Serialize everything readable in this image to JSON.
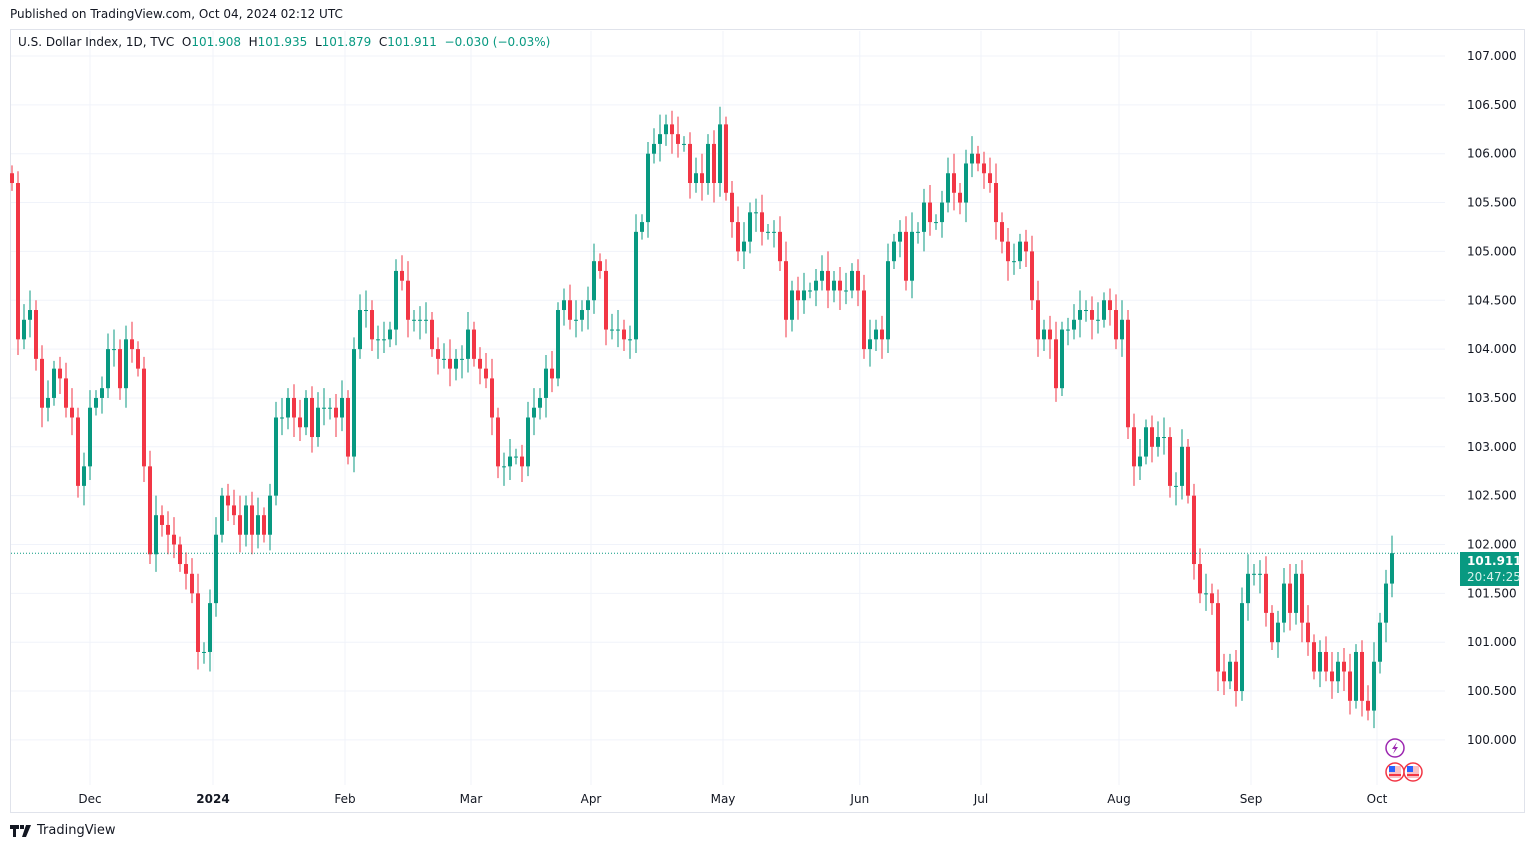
{
  "published": "Published on TradingView.com, Oct 04, 2024 02:12 UTC",
  "legend": {
    "symbol": "U.S. Dollar Index, 1D, TVC",
    "o_label": "O",
    "o": "101.908",
    "h_label": "H",
    "h": "101.935",
    "l_label": "L",
    "l": "101.879",
    "c_label": "C",
    "c": "101.911",
    "change": "−0.030 (−0.03%)"
  },
  "colors": {
    "up": "#089981",
    "down": "#f23645",
    "grid": "#f0f3fa",
    "text": "#131722"
  },
  "footer": {
    "brand": "TradingView"
  },
  "price_tag": {
    "price": "101.911",
    "countdown": "20:47:25"
  },
  "chart_data": {
    "type": "candlestick",
    "title": "U.S. Dollar Index, 1D, TVC",
    "ylim": [
      99.55,
      107.27
    ],
    "y_ticks": [
      "100.000",
      "100.500",
      "101.000",
      "101.500",
      "102.000",
      "102.500",
      "103.000",
      "103.500",
      "104.000",
      "104.500",
      "105.000",
      "105.500",
      "106.000",
      "106.500",
      "107.000"
    ],
    "x_ticks": [
      {
        "label": "Dec",
        "index": 13
      },
      {
        "label": "2024",
        "index": 33.5,
        "bold": true
      },
      {
        "label": "Feb",
        "index": 55.5
      },
      {
        "label": "Mar",
        "index": 76.5
      },
      {
        "label": "Apr",
        "index": 96.5
      },
      {
        "label": "May",
        "index": 118.5
      },
      {
        "label": "Jun",
        "index": 141.3
      },
      {
        "label": "Jul",
        "index": 161.5
      },
      {
        "label": "Aug",
        "index": 184.5
      },
      {
        "label": "Sep",
        "index": 206.5
      },
      {
        "label": "Oct",
        "index": 227.5
      }
    ],
    "first_open": 105.8,
    "close": [
      105.7,
      104.1,
      104.3,
      104.4,
      103.9,
      103.4,
      103.5,
      103.8,
      103.7,
      103.4,
      103.3,
      102.6,
      102.8,
      103.4,
      103.5,
      103.6,
      104.0,
      104.0,
      103.6,
      104.1,
      104.0,
      103.8,
      102.8,
      101.9,
      102.3,
      102.2,
      102.1,
      102.0,
      101.8,
      101.7,
      101.5,
      100.9,
      100.9,
      101.4,
      102.1,
      102.5,
      102.4,
      102.3,
      102.1,
      102.4,
      102.1,
      102.3,
      102.1,
      102.5,
      103.3,
      103.3,
      103.5,
      103.3,
      103.2,
      103.5,
      103.1,
      103.4,
      103.4,
      103.4,
      103.3,
      103.5,
      102.9,
      104.0,
      104.4,
      104.4,
      104.1,
      104.1,
      104.1,
      104.2,
      104.8,
      104.7,
      104.3,
      104.3,
      104.3,
      104.3,
      104.0,
      103.9,
      103.9,
      103.8,
      103.9,
      103.9,
      104.2,
      103.9,
      103.8,
      103.7,
      103.3,
      102.8,
      102.8,
      102.9,
      102.9,
      102.8,
      103.3,
      103.4,
      103.5,
      103.8,
      103.7,
      104.4,
      104.5,
      104.3,
      104.3,
      104.4,
      104.5,
      104.9,
      104.8,
      104.2,
      104.2,
      104.2,
      104.1,
      104.1,
      105.2,
      105.3,
      106.0,
      106.1,
      106.2,
      106.3,
      106.2,
      106.1,
      106.1,
      105.7,
      105.8,
      105.7,
      106.1,
      105.7,
      106.3,
      105.6,
      105.3,
      105.0,
      105.1,
      105.4,
      105.4,
      105.2,
      105.2,
      105.2,
      104.9,
      104.3,
      104.6,
      104.5,
      104.6,
      104.6,
      104.7,
      104.8,
      104.6,
      104.7,
      104.6,
      104.6,
      104.8,
      104.6,
      104.0,
      104.1,
      104.2,
      104.1,
      104.9,
      105.1,
      105.2,
      104.7,
      105.2,
      105.2,
      105.5,
      105.3,
      105.3,
      105.5,
      105.8,
      105.6,
      105.5,
      105.9,
      106.0,
      105.9,
      105.8,
      105.7,
      105.3,
      105.1,
      104.9,
      104.9,
      105.1,
      105.0,
      104.5,
      104.1,
      104.2,
      104.1,
      103.6,
      104.2,
      104.2,
      104.3,
      104.4,
      104.4,
      104.3,
      104.3,
      104.5,
      104.4,
      104.1,
      104.3,
      103.2,
      102.8,
      102.9,
      103.2,
      103.0,
      103.1,
      103.1,
      102.6,
      102.6,
      103.0,
      102.5,
      101.8,
      101.5,
      101.5,
      101.4,
      100.7,
      100.6,
      100.8,
      100.5,
      101.4,
      101.7,
      101.7,
      101.7,
      101.3,
      101.0,
      101.2,
      101.6,
      101.3,
      101.7,
      101.2,
      101.0,
      100.7,
      100.9,
      100.7,
      100.6,
      100.8,
      100.7,
      100.4,
      100.9,
      100.4,
      100.3,
      100.8,
      101.2,
      101.6,
      101.911
    ],
    "last_price": 101.911
  }
}
